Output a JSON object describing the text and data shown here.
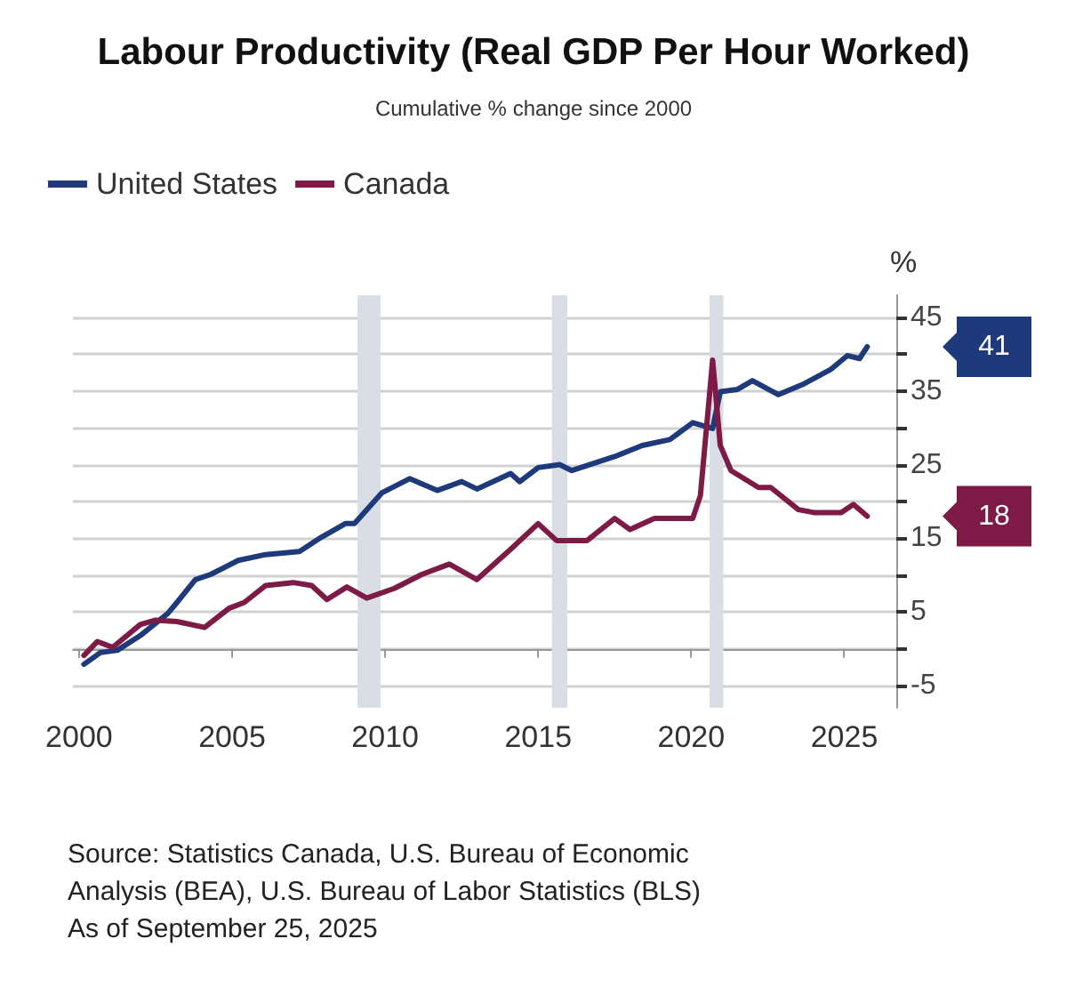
{
  "chart_data": {
    "type": "line",
    "title": "Labour Productivity (Real GDP Per Hour Worked)",
    "subtitle": "Cumulative % change since 2000",
    "ylabel": "%",
    "series": [
      {
        "name": "United States",
        "color": "#1f3a7a",
        "x": [
          2000.16,
          2000.7,
          2001.25,
          2002.0,
          2002.9,
          2003.2,
          2003.8,
          2004.3,
          2005.2,
          2006.1,
          2007.2,
          2007.9,
          2008.7,
          2009.0,
          2009.9,
          2010.8,
          2011.7,
          2012.5,
          2013.0,
          2014.1,
          2014.4,
          2015.0,
          2015.7,
          2016.1,
          2017.5,
          2018.4,
          2019.3,
          2020.05,
          2020.7,
          2020.95,
          2021.5,
          2022.0,
          2022.85,
          2023.7,
          2024.55,
          2025.1,
          2025.5,
          2025.75
        ],
        "values": [
          -2.1,
          -0.5,
          -0.2,
          1.8,
          4.8,
          6.3,
          9.4,
          10.1,
          12.0,
          12.8,
          13.2,
          15.1,
          17.0,
          17.0,
          21.2,
          23.1,
          21.5,
          22.7,
          21.7,
          23.8,
          22.7,
          24.6,
          25.0,
          24.2,
          26.1,
          27.6,
          28.4,
          30.7,
          29.9,
          34.9,
          35.2,
          36.4,
          34.5,
          36.0,
          37.9,
          39.8,
          39.4,
          41
        ]
      },
      {
        "name": "Canada",
        "color": "#7d1a45",
        "x": [
          2000.16,
          2000.6,
          2001.1,
          2002.0,
          2002.5,
          2003.2,
          2004.1,
          2004.9,
          2005.4,
          2006.1,
          2007.0,
          2007.6,
          2008.1,
          2008.75,
          2009.4,
          2010.3,
          2011.2,
          2012.1,
          2013.0,
          2014.1,
          2015.0,
          2015.6,
          2016.6,
          2017.5,
          2018.0,
          2018.8,
          2020.05,
          2020.3,
          2020.7,
          2020.95,
          2021.3,
          2022.2,
          2022.6,
          2023.5,
          2024.0,
          2024.9,
          2025.3,
          2025.75
        ],
        "values": [
          -0.9,
          1.0,
          0.2,
          3.3,
          3.9,
          3.7,
          2.9,
          5.5,
          6.3,
          8.6,
          9.0,
          8.6,
          6.7,
          8.4,
          6.9,
          8.2,
          10.1,
          11.5,
          9.4,
          13.5,
          17.0,
          14.7,
          14.7,
          17.7,
          16.2,
          17.7,
          17.7,
          20.8,
          39.2,
          27.6,
          24.2,
          21.9,
          21.9,
          18.9,
          18.5,
          18.5,
          19.6,
          18.0
        ]
      }
    ],
    "xlim": [
      1999.8,
      2026.7
    ],
    "xticks": [
      2000,
      2005,
      2010,
      2015,
      2020,
      2025
    ],
    "ylim": [
      -8,
      48
    ],
    "yticks": [
      -5,
      {
        "value": 0,
        "label": null
      },
      5,
      {
        "value": 10,
        "label": null
      },
      15,
      {
        "value": 20,
        "label": null
      },
      25,
      {
        "value": 30,
        "label": null
      },
      35,
      {
        "value": 40,
        "label": null
      },
      45
    ],
    "bands": [
      {
        "axis": "x",
        "from": 2009.1,
        "to": 2009.85,
        "color": "#d9dde6"
      },
      {
        "axis": "x",
        "from": 2015.45,
        "to": 2015.95,
        "color": "#d9dde6"
      },
      {
        "axis": "x",
        "from": 2020.6,
        "to": 2021.05,
        "color": "#d9dde6"
      }
    ],
    "annotations": [
      "41",
      "18",
      "Source: Statistics Canada, U.S. Bureau of Economic Analysis (BEA), U.S. Bureau of Labor Statistics (BLS)",
      "As of September 25, 2025"
    ],
    "grid": "y",
    "legend": "top left",
    "marker": "none",
    "line_style": "solid"
  }
}
